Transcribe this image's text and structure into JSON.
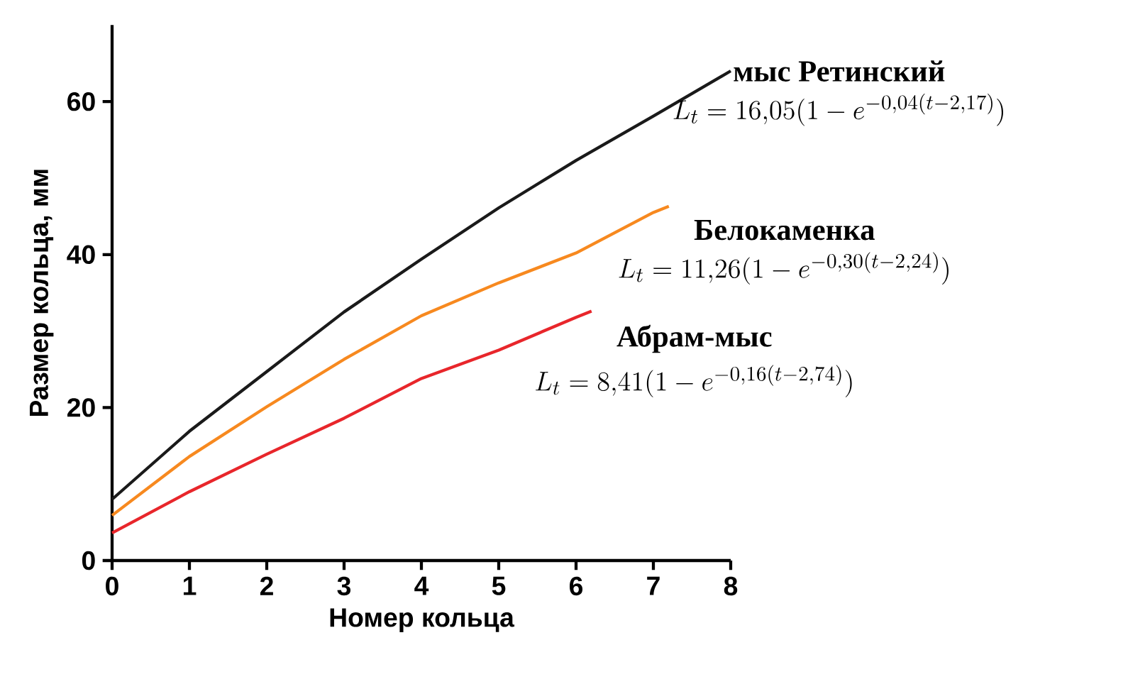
{
  "chart_data": {
    "type": "line",
    "xlabel": "Номер кольца",
    "ylabel": "Размер кольца, мм",
    "xlim": [
      0,
      8
    ],
    "xticks": [
      0,
      1,
      2,
      3,
      4,
      5,
      6,
      7,
      8
    ],
    "ylim": [
      0,
      70
    ],
    "yticks": [
      0,
      20,
      40,
      60
    ],
    "series": [
      {
        "name": "мыс Ретинский",
        "color": "#1a1a1a",
        "x": [
          0,
          1,
          2,
          3,
          4,
          5,
          6,
          7,
          8
        ],
        "values": [
          8.0,
          16.9,
          24.7,
          32.5,
          39.4,
          46.1,
          52.3,
          58.1,
          64.0
        ]
      },
      {
        "name": "Белокаменка",
        "color": "#f7891f",
        "x": [
          0,
          1,
          2,
          3,
          4,
          5,
          6,
          7,
          7.2
        ],
        "values": [
          5.9,
          13.6,
          20.1,
          26.3,
          32.0,
          36.3,
          40.2,
          45.5,
          46.3
        ]
      },
      {
        "name": "Абрам-мыс",
        "color": "#e8262b",
        "x": [
          0,
          1,
          2,
          3,
          4,
          5,
          6,
          6.2
        ],
        "values": [
          3.6,
          9.0,
          13.9,
          18.6,
          23.8,
          27.5,
          31.8,
          32.6
        ]
      }
    ],
    "annotations": [
      "L_t = 16{,}05(1-e^{-0{,}04(t-2{,}17)})",
      "L_t = 11{,}26(1-e^{-0{,}30(t-2{,}24)})",
      "L_t = 8{,}41(1-e^{-0{,}16(t-2{,}74)})"
    ],
    "marker": "none",
    "line_style": "solid",
    "grid": false
  }
}
